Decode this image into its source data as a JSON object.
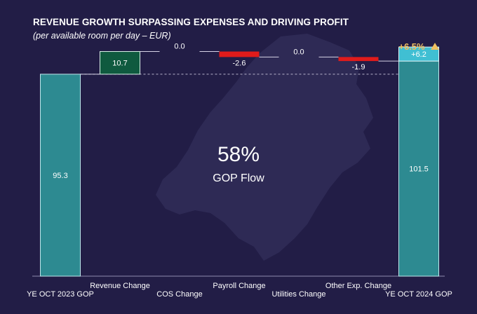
{
  "title": "REVENUE GROWTH SURPASSING EXPENSES AND DRIVING PROFIT",
  "subtitle": "(per available room per day – EUR)",
  "center_value": "58%",
  "center_label": "GOP Flow",
  "growth_badge": "+6.5%",
  "colors": {
    "background": "#221d46",
    "total_bar": "#2d8a91",
    "increase_bar": "#0f5a3f",
    "decrease_bar": "#e01b1b",
    "delta_box": "#40bfd3",
    "badge": "#f0c060",
    "map_silhouette": "#2e2a55"
  },
  "chart_data": {
    "type": "waterfall",
    "title": "REVENUE GROWTH SURPASSING EXPENSES AND DRIVING PROFIT",
    "subtitle": "(per available room per day – EUR)",
    "categories": [
      "YE OCT 2023 GOP",
      "Revenue Change",
      "COS Change",
      "Payroll Change",
      "Utilities Change",
      "Other Exp. Change",
      "YE OCT 2024 GOP"
    ],
    "values": [
      95.3,
      10.7,
      0.0,
      -2.6,
      0.0,
      -1.9,
      101.5
    ],
    "labels": [
      "95.3",
      "10.7",
      "0.0",
      "-2.6",
      "0.0",
      "-1.9",
      "101.5"
    ],
    "kinds": [
      "total",
      "delta",
      "delta",
      "delta",
      "delta",
      "delta",
      "total"
    ],
    "total_change": 6.2,
    "total_change_label": "+6.2",
    "growth_percent": "+6.5%",
    "ylim": [
      0,
      106.5
    ],
    "grid": false,
    "legend": "none"
  }
}
